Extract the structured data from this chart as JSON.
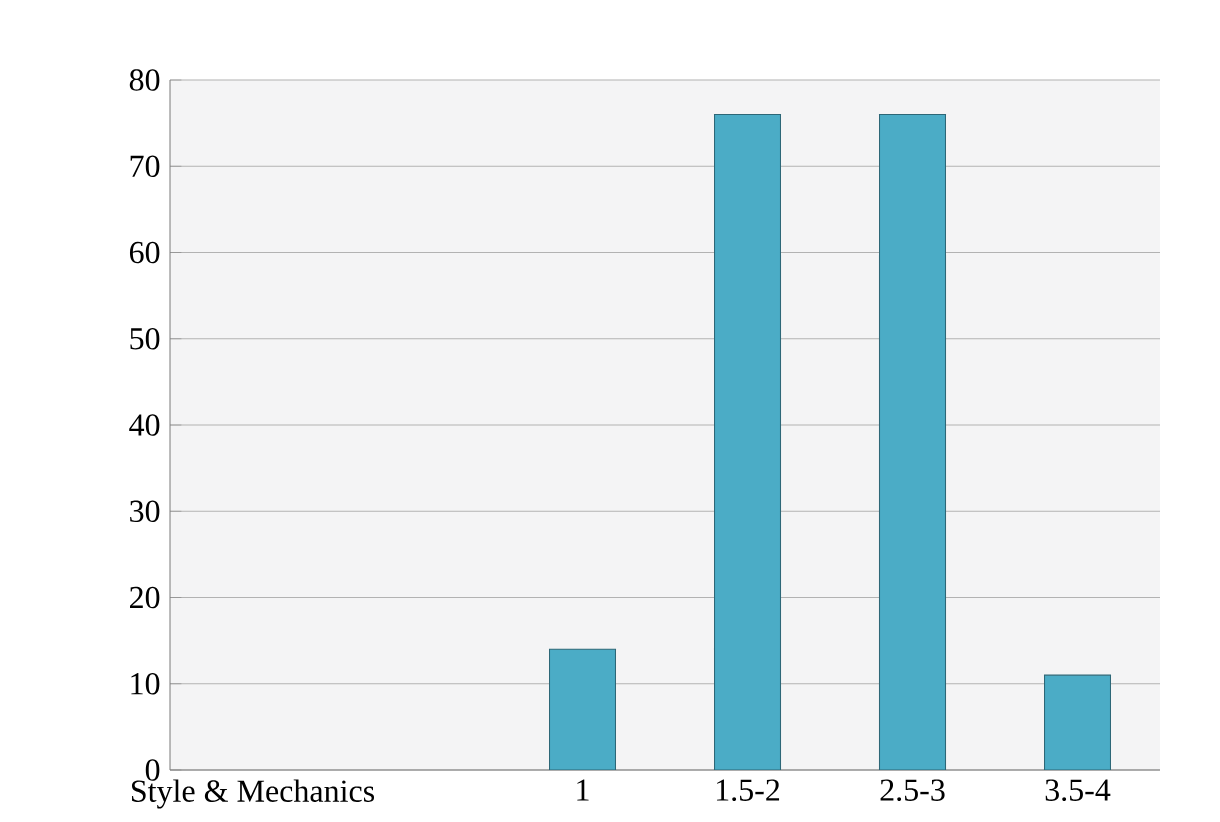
{
  "chart_data": {
    "type": "bar",
    "categories": [
      "Style & Mechanics",
      null,
      "1",
      "1.5-2",
      "2.5-3",
      "3.5-4"
    ],
    "values": [
      null,
      null,
      14,
      76,
      76,
      11
    ],
    "color": "#4bacc6",
    "ylim": [
      0,
      80
    ],
    "yticks": [
      0,
      10,
      20,
      30,
      40,
      50,
      60,
      70,
      80
    ],
    "grid": "y"
  }
}
